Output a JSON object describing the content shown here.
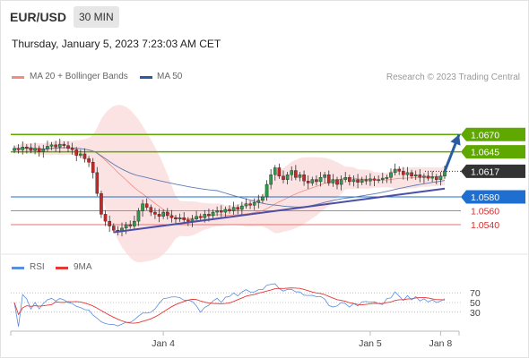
{
  "header": {
    "pair": "EUR/USD",
    "timeframe": "30 MIN"
  },
  "date_text": "Thursday, January 5, 2023 7:23:03 AM CET",
  "legend": {
    "ma20": "MA 20 + Bollinger Bands",
    "ma50": "MA 50",
    "copyright": "Research © 2023 Trading Central"
  },
  "rsi_legend": {
    "rsi": "RSI",
    "ma9": "9MA"
  },
  "colors": {
    "resistance": "#5fa800",
    "support": "#e57373",
    "pivot": "#1f6fd1",
    "trend": "#4b4fa5",
    "up": "#2e9a4a",
    "down": "#c62828",
    "bands": "#fbdada",
    "ma50": "#5d7bb1"
  },
  "chart_data": {
    "type": "candlestick",
    "x_labels": [
      "Jan 4",
      "Jan 5",
      "Jan 8"
    ],
    "ylim": [
      1.05,
      1.07
    ],
    "levels": [
      {
        "label": "1.0670",
        "value": 1.067,
        "kind": "resistance"
      },
      {
        "label": "1.0645",
        "value": 1.0645,
        "kind": "resistance"
      },
      {
        "label": "1.0617",
        "value": 1.0617,
        "kind": "last"
      },
      {
        "label": "1.0580",
        "value": 1.058,
        "kind": "pivot"
      },
      {
        "label": "1.0560",
        "value": 1.056,
        "kind": "support"
      },
      {
        "label": "1.0540",
        "value": 1.054,
        "kind": "support"
      }
    ],
    "close_series": [
      1.065,
      1.0648,
      1.0652,
      1.0651,
      1.0647,
      1.065,
      1.0645,
      1.0649,
      1.0653,
      1.0655,
      1.0652,
      1.0656,
      1.0654,
      1.065,
      1.0648,
      1.064,
      1.0642,
      1.0635,
      1.063,
      1.0615,
      1.0585,
      1.0555,
      1.0545,
      1.0538,
      1.0532,
      1.053,
      1.0535,
      1.054,
      1.0538,
      1.0545,
      1.056,
      1.057,
      1.0565,
      1.0558,
      1.0555,
      1.0552,
      1.0558,
      1.0553,
      1.055,
      1.0548,
      1.055,
      1.0547,
      1.0545,
      1.0548,
      1.0552,
      1.055,
      1.0555,
      1.0553,
      1.0558,
      1.056,
      1.0558,
      1.0562,
      1.056,
      1.0565,
      1.0562,
      1.0567,
      1.057,
      1.0568,
      1.0572,
      1.0575,
      1.058,
      1.0598,
      1.0612,
      1.0622,
      1.061,
      1.0605,
      1.0612,
      1.0618,
      1.0608,
      1.0612,
      1.0603,
      1.06,
      1.0605,
      1.0602,
      1.0608,
      1.0612,
      1.06,
      1.0605,
      1.0598,
      1.0605,
      1.0608,
      1.0602,
      1.0605,
      1.0601,
      1.0605,
      1.0603,
      1.0606,
      1.0604,
      1.0605,
      1.0607,
      1.0608,
      1.0615,
      1.062,
      1.0617,
      1.0612,
      1.0615,
      1.061,
      1.0612,
      1.0608,
      1.061,
      1.0607,
      1.0609,
      1.0605,
      1.061,
      1.0617
    ],
    "trendline": [
      [
        24,
        1.0529
      ],
      [
        104,
        1.0592
      ]
    ],
    "arrow": {
      "from": [
        104,
        1.0617
      ],
      "to": [
        110,
        1.067
      ]
    },
    "rsi": {
      "ylim": [
        0,
        100
      ],
      "levels": [
        70,
        50,
        30
      ],
      "tick_labels": [
        "70",
        "50",
        "30"
      ]
    }
  }
}
